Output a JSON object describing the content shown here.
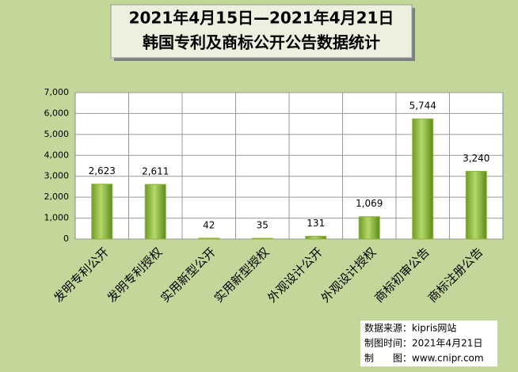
{
  "chart_data": {
    "type": "bar",
    "title_lines": [
      "2021年4月15日—2021年4月21日",
      "韩国专利及商标公开公告数据统计"
    ],
    "categories": [
      "发明专利公开",
      "发明专利授权",
      "实用新型公开",
      "实用新型授权",
      "外观设计公开",
      "外观设计授权",
      "商标初审公告",
      "商标注册公告"
    ],
    "values": [
      2623,
      2611,
      42,
      35,
      131,
      1069,
      5744,
      3240
    ],
    "value_labels": [
      "2,623",
      "2,611",
      "42",
      "35",
      "131",
      "1,069",
      "5,744",
      "3,240"
    ],
    "color": "#8db33a",
    "ylim": [
      0,
      7000
    ],
    "yticks": [
      0,
      {
        "value": 1000,
        "label": "1,000"
      },
      {
        "value": 2000,
        "label": "2,000"
      },
      {
        "value": 3000,
        "label": "3,000"
      },
      {
        "value": 4000,
        "label": "4,000"
      },
      {
        "value": 5000,
        "label": "5,000"
      },
      {
        "value": 6000,
        "label": "6,000"
      },
      {
        "value": 7000,
        "label": "7,000"
      }
    ],
    "grid": true,
    "notes": [
      "数据来源：kipris网站",
      "制图时间：2021年4月21日",
      "制　　图：www.cnipr.com"
    ]
  }
}
